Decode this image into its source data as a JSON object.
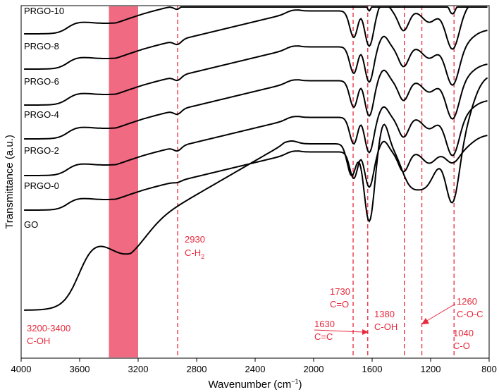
{
  "chart_data": {
    "type": "line",
    "title": "",
    "xlabel": "Wavenumber (cm",
    "xlabel_sup": "−1",
    "xlabel_end": ")",
    "ylabel": "Transmittance  (a.u.)",
    "xlim": [
      4000,
      800
    ],
    "x_reversed": true,
    "y_ticks": false,
    "xticks": [
      4000,
      3600,
      3200,
      2800,
      2400,
      2000,
      1600,
      1200,
      800
    ],
    "xtick_labels": [
      "4000",
      "3600",
      "3200",
      "2800",
      "2400",
      "2000",
      "1600",
      "1200",
      "800"
    ],
    "highlight_band": {
      "x_from": 3400,
      "x_to": 3200,
      "color": "#f06a82"
    },
    "line_color": "#000000",
    "annotation_color": "#e8283c",
    "reference_lines": [
      2930,
      1730,
      1630,
      1380,
      1260,
      1040
    ],
    "series": [
      {
        "name": "PRGO-10",
        "offset": 0.5
      },
      {
        "name": "PRGO-8",
        "offset": 0.0
      },
      {
        "name": "PRGO-6",
        "offset": -0.5
      },
      {
        "name": "PRGO-4",
        "offset": -1.0
      },
      {
        "name": "PRGO-2",
        "offset": -1.5
      },
      {
        "name": "PRGO-0",
        "offset": -2.0
      },
      {
        "name": "GO",
        "offset": -3.0
      }
    ],
    "annotations": [
      {
        "label_1": "3200-3400",
        "label_2": "C-OH",
        "x": 3300
      },
      {
        "label_1": "2930",
        "label_2": "C-H",
        "label_2_sub": "2",
        "x": 2930
      },
      {
        "label_1": "1730",
        "label_2": "C=O",
        "x": 1730
      },
      {
        "label_1": "1630",
        "label_2": "C=C",
        "x": 1630
      },
      {
        "label_1": "1380",
        "label_2": "C-OH",
        "x": 1380
      },
      {
        "label_1": "1260",
        "label_2": "C-O-C",
        "x": 1260
      },
      {
        "label_1": "1040",
        "label_2": "C-O",
        "x": 1040
      }
    ]
  }
}
